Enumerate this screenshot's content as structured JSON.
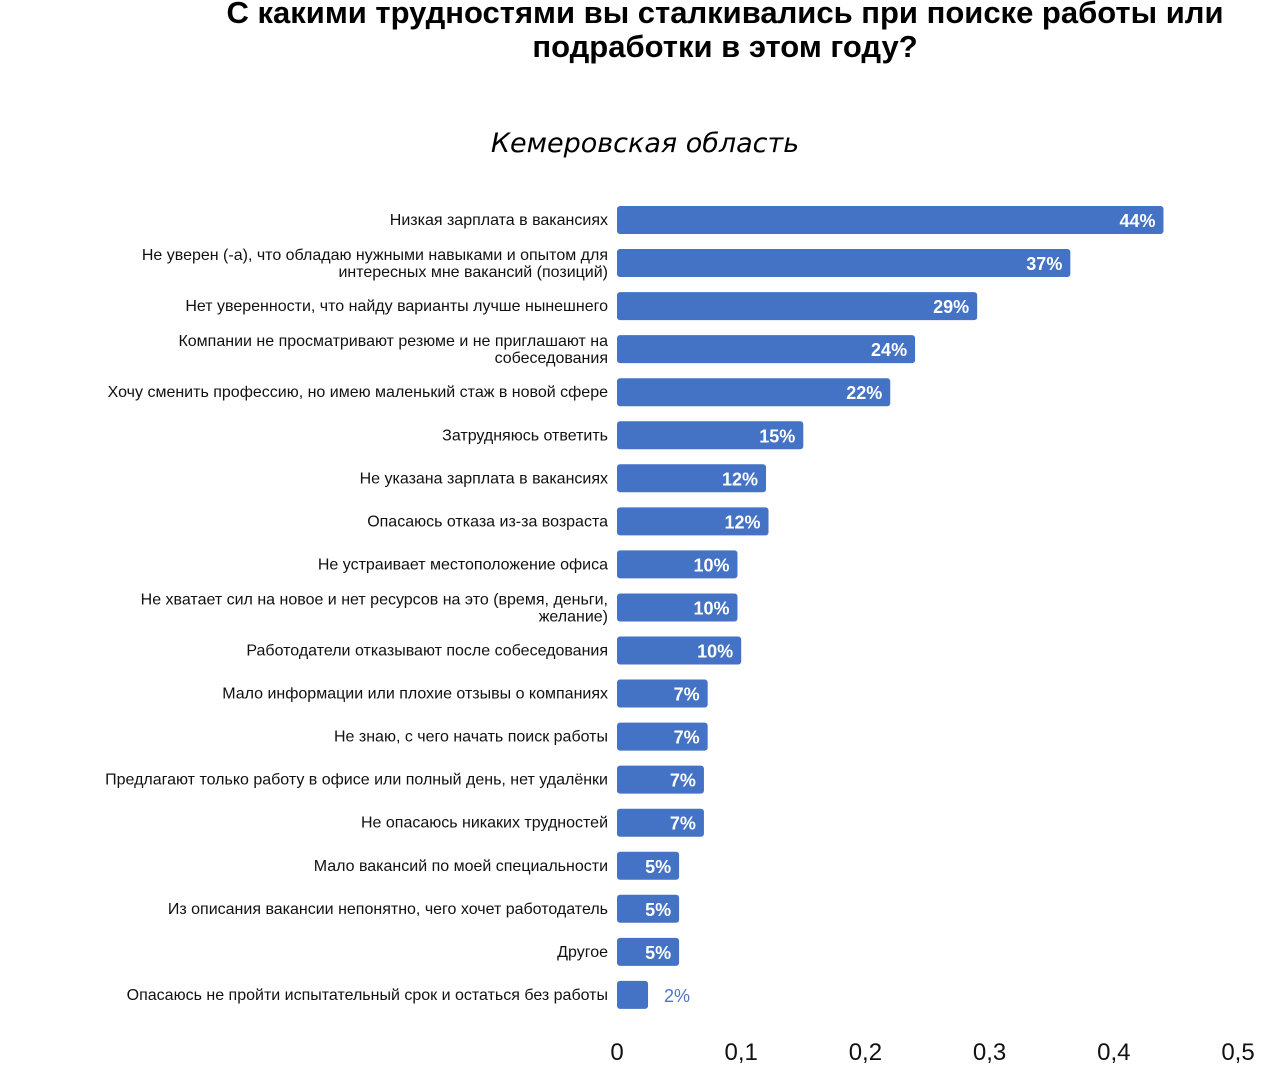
{
  "chart_data": {
    "type": "bar",
    "orientation": "horizontal",
    "title": "С какими трудностями вы сталкивались при поиске работы или подработки в этом году?",
    "subtitle": "Кемеровская область",
    "bar_color": "#4472C4",
    "categories": [
      [
        "Низкая зарплата в вакансиях"
      ],
      [
        "Не уверен (-а), что обладаю нужными навыками и опытом для",
        "интересных мне вакансий (позиций)"
      ],
      [
        "Нет уверенности, что найду варианты лучше нынешнего"
      ],
      [
        "Компании не просматривают резюме и не приглашают на",
        "собеседования"
      ],
      [
        "Хочу сменить профессию, но имею маленький стаж в новой сфере"
      ],
      [
        "Затрудняюсь ответить"
      ],
      [
        "Не указана зарплата в вакансиях"
      ],
      [
        "Опасаюсь отказа из-за возраста"
      ],
      [
        "Не устраивает местоположение офиса"
      ],
      [
        "Не хватает сил на новое и нет ресурсов на это (время, деньги,",
        "желание)"
      ],
      [
        "Работодатели отказывают после собеседования"
      ],
      [
        "Мало информации или плохие отзывы о компаниях"
      ],
      [
        "Не знаю, с чего начать поиск работы"
      ],
      [
        "Предлагают только работу в офисе или полный день, нет удалёнки"
      ],
      [
        "Не опасаюсь никаких трудностей"
      ],
      [
        "Мало вакансий по моей специальности"
      ],
      [
        "Из описания вакансии непонятно, чего хочет работодатель"
      ],
      [
        "Другое"
      ],
      [
        "Опасаюсь не пройти испытательный срок и остаться без работы"
      ]
    ],
    "values": [
      0.44,
      0.365,
      0.29,
      0.24,
      0.22,
      0.15,
      0.12,
      0.122,
      0.097,
      0.097,
      0.1,
      0.073,
      0.073,
      0.07,
      0.07,
      0.05,
      0.05,
      0.05,
      0.025
    ],
    "value_labels": [
      "44%",
      "37%",
      "29%",
      "24%",
      "22%",
      "15%",
      "12%",
      "12%",
      "10%",
      "10%",
      "10%",
      "7%",
      "7%",
      "7%",
      "7%",
      "5%",
      "5%",
      "5%",
      "2%"
    ],
    "xlim": [
      0,
      0.5
    ],
    "xticks": [
      "0",
      "0,1",
      "0,2",
      "0,3",
      "0,4",
      "0,5"
    ],
    "grid": false
  }
}
